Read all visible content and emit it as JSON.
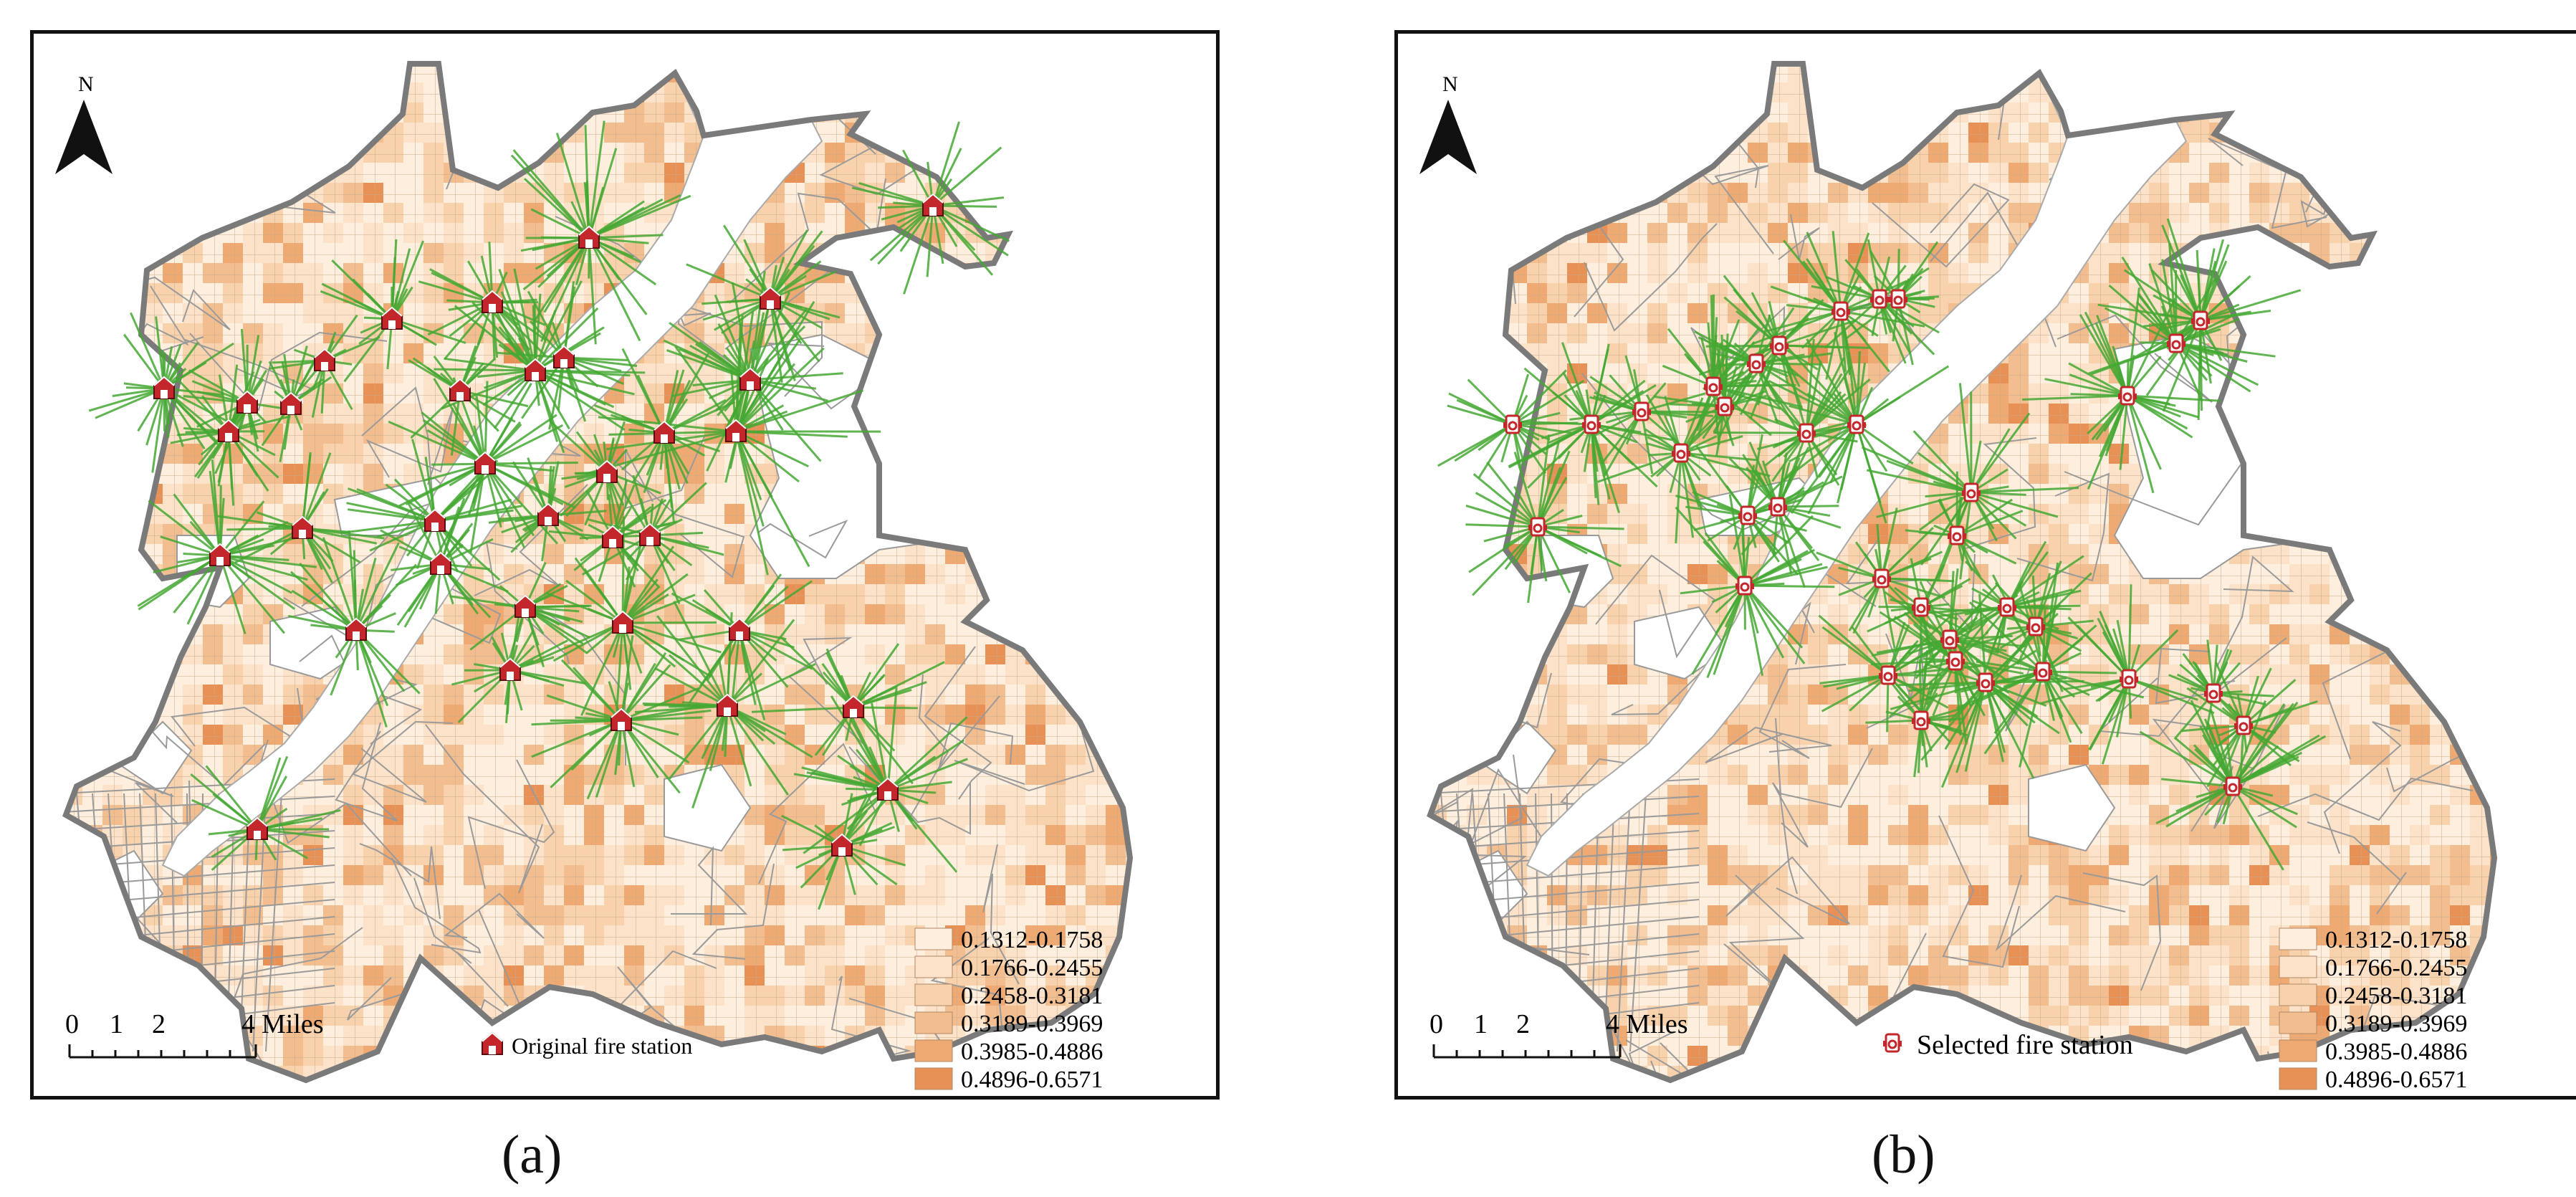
{
  "panels": [
    {
      "id": "a",
      "caption": "(a)",
      "north_label": "N",
      "station_label": "Original fire station",
      "station_icon": "fire-station-house-icon",
      "scale": {
        "ticks": [
          "0",
          "1",
          "2",
          "4"
        ],
        "unit": "Miles"
      },
      "legend": [
        "0.1312-0.1758",
        "0.1766-0.2455",
        "0.2458-0.3181",
        "0.3189-0.3969",
        "0.3985-0.4886",
        "0.4896-0.6571"
      ]
    },
    {
      "id": "b",
      "caption": "(b)",
      "north_label": "N",
      "station_label": "Selected fire station",
      "station_icon": "fire-hydrant-icon",
      "scale": {
        "ticks": [
          "0",
          "1",
          "2",
          "4"
        ],
        "unit": "Miles"
      },
      "legend": [
        "0.1312-0.1758",
        "0.1766-0.2455",
        "0.2458-0.3181",
        "0.3189-0.3969",
        "0.3985-0.4886",
        "0.4896-0.6571"
      ]
    }
  ],
  "legend_colors": [
    "#fdeedd",
    "#fbe2c8",
    "#f8d2ad",
    "#f3be8f",
    "#eeaa72",
    "#e79156"
  ],
  "spoke_color": "#44a832",
  "station_color": "#c3262b",
  "river_color": "#ffffff"
}
